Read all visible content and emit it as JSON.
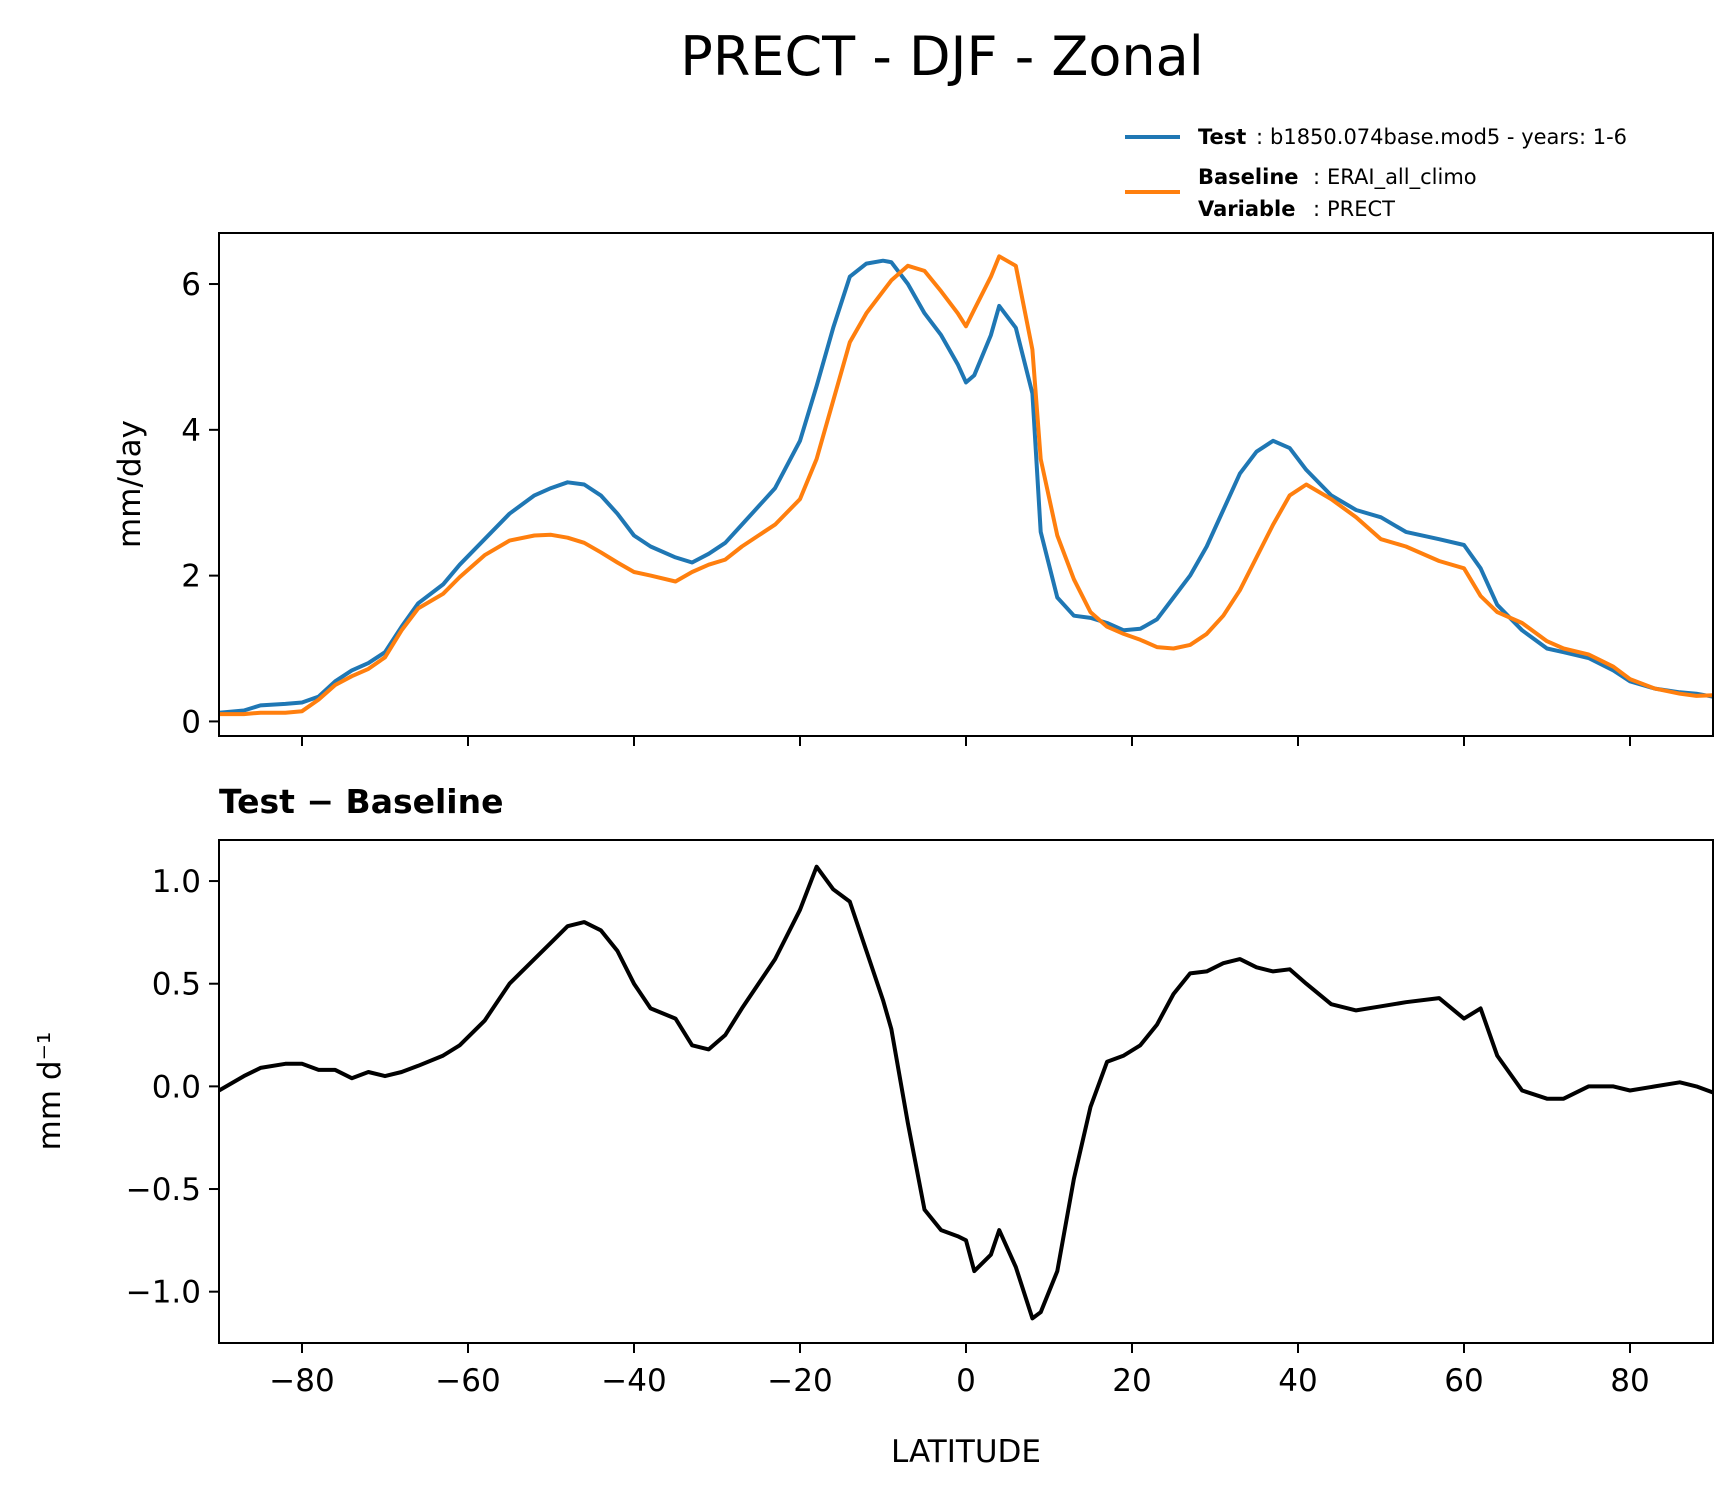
{
  "title": "PRECT - DJF - Zonal",
  "legend": {
    "test_key": "Test",
    "test_value": "b1850.074base.mod5 - years: 1-6",
    "baseline_key": "Baseline",
    "baseline_value": "ERAI_all_climo",
    "variable_key": "Variable",
    "variable_value": "PRECT",
    "separator": ":"
  },
  "colors": {
    "test": "#1f77b4",
    "baseline": "#ff7f0e",
    "diff": "#000000"
  },
  "chart_data": [
    {
      "type": "line",
      "title": "",
      "xlabel": "",
      "ylabel": "mm/day",
      "xlim": [
        -90,
        90
      ],
      "ylim": [
        -0.2,
        6.7
      ],
      "yticks": [
        0,
        2,
        4,
        6
      ],
      "ytick_labels": [
        "0",
        "2",
        "4",
        "6"
      ],
      "xticks": [
        -80,
        -60,
        -40,
        -20,
        0,
        20,
        40,
        60,
        80
      ],
      "x": [
        -90,
        -87,
        -85,
        -82,
        -80,
        -78,
        -76,
        -74,
        -72,
        -70,
        -68,
        -66,
        -63,
        -61,
        -58,
        -55,
        -52,
        -50,
        -48,
        -46,
        -44,
        -42,
        -40,
        -38,
        -35,
        -33,
        -31,
        -29,
        -27,
        -25,
        -23,
        -20,
        -18,
        -16,
        -14,
        -12,
        -10,
        -9,
        -7,
        -5,
        -3,
        -1,
        0,
        1,
        3,
        4,
        6,
        8,
        9,
        11,
        13,
        15,
        17,
        19,
        21,
        23,
        25,
        27,
        29,
        31,
        33,
        35,
        37,
        39,
        41,
        44,
        47,
        50,
        53,
        57,
        60,
        62,
        64,
        67,
        70,
        72,
        75,
        78,
        80,
        83,
        86,
        88,
        90
      ],
      "series": [
        {
          "name": "Test",
          "values": [
            0.12,
            0.15,
            0.22,
            0.24,
            0.26,
            0.34,
            0.55,
            0.7,
            0.8,
            0.95,
            1.3,
            1.62,
            1.88,
            2.15,
            2.5,
            2.85,
            3.1,
            3.2,
            3.28,
            3.25,
            3.1,
            2.85,
            2.55,
            2.4,
            2.25,
            2.18,
            2.3,
            2.45,
            2.7,
            2.95,
            3.2,
            3.85,
            4.6,
            5.4,
            6.1,
            6.28,
            6.32,
            6.3,
            6.0,
            5.6,
            5.3,
            4.9,
            4.65,
            4.75,
            5.3,
            5.7,
            5.4,
            4.5,
            2.6,
            1.7,
            1.45,
            1.42,
            1.35,
            1.25,
            1.27,
            1.4,
            1.7,
            2.0,
            2.4,
            2.9,
            3.4,
            3.7,
            3.85,
            3.75,
            3.45,
            3.1,
            2.9,
            2.8,
            2.6,
            2.5,
            2.42,
            2.1,
            1.6,
            1.25,
            1.0,
            0.95,
            0.87,
            0.7,
            0.55,
            0.45,
            0.4,
            0.38,
            0.34
          ]
        },
        {
          "name": "Baseline",
          "values": [
            0.1,
            0.1,
            0.12,
            0.12,
            0.14,
            0.3,
            0.5,
            0.62,
            0.72,
            0.88,
            1.25,
            1.55,
            1.75,
            1.98,
            2.28,
            2.48,
            2.55,
            2.56,
            2.52,
            2.45,
            2.32,
            2.18,
            2.05,
            2.0,
            1.92,
            2.05,
            2.15,
            2.22,
            2.4,
            2.55,
            2.7,
            3.05,
            3.6,
            4.4,
            5.2,
            5.6,
            5.9,
            6.05,
            6.25,
            6.18,
            5.9,
            5.6,
            5.42,
            5.65,
            6.1,
            6.38,
            6.25,
            5.1,
            3.6,
            2.55,
            1.95,
            1.5,
            1.3,
            1.2,
            1.12,
            1.02,
            1.0,
            1.05,
            1.2,
            1.45,
            1.8,
            2.25,
            2.7,
            3.1,
            3.25,
            3.05,
            2.8,
            2.5,
            2.4,
            2.2,
            2.1,
            1.72,
            1.5,
            1.35,
            1.1,
            1.0,
            0.92,
            0.75,
            0.58,
            0.45,
            0.38,
            0.35,
            0.36
          ]
        }
      ]
    },
    {
      "type": "line",
      "title": "Test − Baseline",
      "xlabel": "LATITUDE",
      "ylabel": "mm d⁻¹",
      "xlim": [
        -90,
        90
      ],
      "ylim": [
        -1.25,
        1.2
      ],
      "yticks": [
        -1.0,
        -0.5,
        0.0,
        0.5,
        1.0
      ],
      "ytick_labels": [
        "−1.0",
        "−0.5",
        "0.0",
        "0.5",
        "1.0"
      ],
      "xticks": [
        -80,
        -60,
        -40,
        -20,
        0,
        20,
        40,
        60,
        80
      ],
      "xtick_labels": [
        "−80",
        "−60",
        "−40",
        "−20",
        "0",
        "20",
        "40",
        "60",
        "80"
      ],
      "x": [
        -90,
        -87,
        -85,
        -82,
        -80,
        -78,
        -76,
        -74,
        -72,
        -70,
        -68,
        -66,
        -63,
        -61,
        -58,
        -55,
        -52,
        -50,
        -48,
        -46,
        -44,
        -42,
        -40,
        -38,
        -35,
        -33,
        -31,
        -29,
        -27,
        -25,
        -23,
        -20,
        -18,
        -16,
        -14,
        -12,
        -10,
        -9,
        -7,
        -5,
        -3,
        -1,
        0,
        1,
        3,
        4,
        6,
        8,
        9,
        11,
        13,
        15,
        17,
        19,
        21,
        23,
        25,
        27,
        29,
        31,
        33,
        35,
        37,
        39,
        41,
        44,
        47,
        50,
        53,
        57,
        60,
        62,
        64,
        67,
        70,
        72,
        75,
        78,
        80,
        83,
        86,
        88,
        90
      ],
      "series": [
        {
          "name": "Test − Baseline",
          "values": [
            -0.02,
            0.05,
            0.09,
            0.11,
            0.11,
            0.08,
            0.08,
            0.04,
            0.07,
            0.05,
            0.07,
            0.1,
            0.15,
            0.2,
            0.32,
            0.5,
            0.62,
            0.7,
            0.78,
            0.8,
            0.76,
            0.66,
            0.5,
            0.38,
            0.33,
            0.2,
            0.18,
            0.25,
            0.38,
            0.5,
            0.62,
            0.86,
            1.07,
            0.96,
            0.9,
            0.66,
            0.42,
            0.28,
            -0.18,
            -0.6,
            -0.7,
            -0.73,
            -0.75,
            -0.9,
            -0.82,
            -0.7,
            -0.88,
            -1.13,
            -1.1,
            -0.9,
            -0.45,
            -0.1,
            0.12,
            0.15,
            0.2,
            0.3,
            0.45,
            0.55,
            0.56,
            0.6,
            0.62,
            0.58,
            0.56,
            0.57,
            0.5,
            0.4,
            0.37,
            0.39,
            0.41,
            0.43,
            0.33,
            0.38,
            0.15,
            -0.02,
            -0.06,
            -0.06,
            0.0,
            0.0,
            -0.02,
            0.0,
            0.02,
            0.0,
            -0.03
          ]
        }
      ]
    }
  ]
}
